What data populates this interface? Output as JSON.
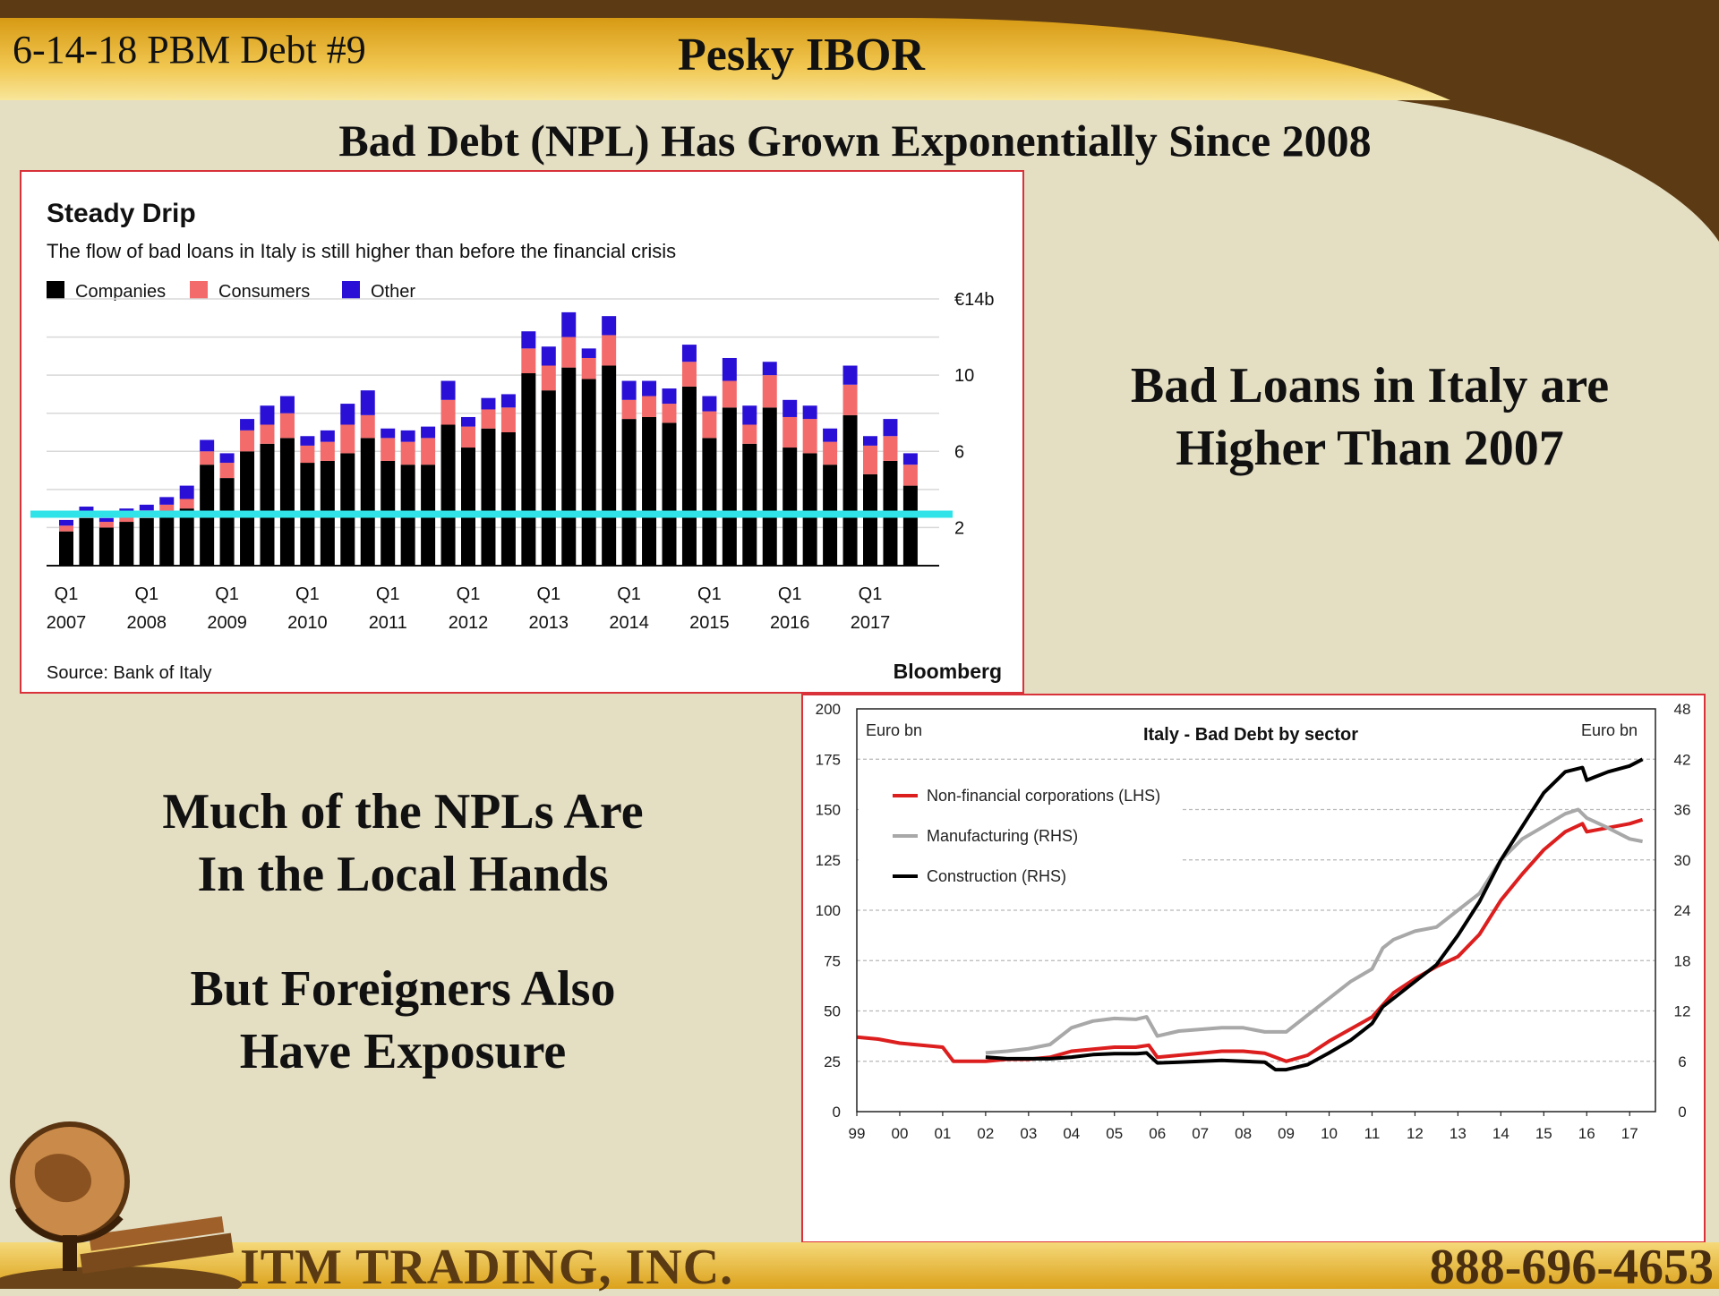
{
  "header": {
    "left_text": "6-14-18 PBM Debt #9",
    "title": "Pesky IBOR"
  },
  "slide_title": "Bad Debt (NPL) Has Grown Exponentially Since 2008",
  "callouts": {
    "right": [
      "Bad Loans in Italy are",
      "Higher Than 2007"
    ],
    "left_1": [
      "Much of the NPLs Are",
      "In the Local Hands"
    ],
    "left_2": [
      "But Foreigners Also",
      "Have Exposure"
    ]
  },
  "footer": {
    "company": "ITM TRADING, INC.",
    "phone": "888-696-4653"
  },
  "colors": {
    "brown": "#5c3a14",
    "gold": "#e2a91c",
    "companies": "#000000",
    "consumers": "#f46b6b",
    "other": "#2a10d6",
    "highlight": "#2fe3e8",
    "nfc": "#dc1e1e",
    "manufacturing": "#a8a8a8",
    "construction": "#000000"
  },
  "chart_data": [
    {
      "type": "bar",
      "stacked": true,
      "title": "Steady Drip",
      "subtitle": "The flow of bad loans in Italy is still higher than before the financial crisis",
      "legend": [
        "Companies",
        "Consumers",
        "Other"
      ],
      "legend_position": "top-left",
      "source": "Source: Bank of Italy",
      "brand": "Bloomberg",
      "y_ticks": [
        2,
        6,
        10
      ],
      "y_top_label": "€14b",
      "ylim": [
        0,
        14
      ],
      "x_tick_labels": [
        [
          "Q1",
          "2007"
        ],
        [
          "Q1",
          "2008"
        ],
        [
          "Q1",
          "2009"
        ],
        [
          "Q1",
          "2010"
        ],
        [
          "Q1",
          "2011"
        ],
        [
          "Q1",
          "2012"
        ],
        [
          "Q1",
          "2013"
        ],
        [
          "Q1",
          "2014"
        ],
        [
          "Q1",
          "2015"
        ],
        [
          "Q1",
          "2016"
        ],
        [
          "Q1",
          "2017"
        ]
      ],
      "reference_line_value": 2.7,
      "series": [
        {
          "name": "Companies",
          "values": [
            1.8,
            2.5,
            2.0,
            2.3,
            2.5,
            2.6,
            3.0,
            5.3,
            4.6,
            6.0,
            6.4,
            6.7,
            5.4,
            5.5,
            5.9,
            6.7,
            5.5,
            5.3,
            5.3,
            7.4,
            6.2,
            7.2,
            7.0,
            10.1,
            9.2,
            10.4,
            9.8,
            10.5,
            7.7,
            7.8,
            7.5,
            9.4,
            6.7,
            8.3,
            6.4,
            8.3,
            6.2,
            5.9,
            5.3,
            7.9,
            4.8,
            5.5,
            4.2
          ]
        },
        {
          "name": "Consumers",
          "values": [
            0.3,
            0.3,
            0.3,
            0.4,
            0.4,
            0.6,
            0.5,
            0.7,
            0.8,
            1.1,
            1.0,
            1.3,
            0.9,
            1.0,
            1.5,
            1.2,
            1.2,
            1.2,
            1.4,
            1.3,
            1.1,
            1.0,
            1.3,
            1.3,
            1.3,
            1.6,
            1.1,
            1.6,
            1.0,
            1.1,
            1.0,
            1.3,
            1.4,
            1.4,
            1.0,
            1.7,
            1.6,
            1.8,
            1.2,
            1.6,
            1.5,
            1.3,
            1.1
          ]
        },
        {
          "name": "Other",
          "values": [
            0.3,
            0.3,
            0.2,
            0.3,
            0.3,
            0.4,
            0.7,
            0.6,
            0.5,
            0.6,
            1.0,
            0.9,
            0.5,
            0.6,
            1.1,
            1.3,
            0.5,
            0.6,
            0.6,
            1.0,
            0.5,
            0.6,
            0.7,
            0.9,
            1.0,
            1.3,
            0.5,
            1.0,
            1.0,
            0.8,
            0.8,
            0.9,
            0.8,
            1.2,
            1.0,
            0.7,
            0.9,
            0.7,
            0.7,
            1.0,
            0.5,
            0.9,
            0.6
          ]
        }
      ]
    },
    {
      "type": "line",
      "title": "Italy - Bad Debt by sector",
      "ylabel_left": "Euro bn",
      "ylabel_right": "Euro bn",
      "ylim_left": [
        0,
        200
      ],
      "ylim_right": [
        0,
        48
      ],
      "y_ticks_left": [
        0,
        25,
        50,
        75,
        100,
        125,
        150,
        175,
        200
      ],
      "y_ticks_right": [
        0,
        6,
        12,
        18,
        24,
        30,
        36,
        42,
        48
      ],
      "x_range": [
        1999,
        2017.6
      ],
      "x_tick_labels": [
        "99",
        "00",
        "01",
        "02",
        "03",
        "04",
        "05",
        "06",
        "07",
        "08",
        "09",
        "10",
        "11",
        "12",
        "13",
        "14",
        "15",
        "16",
        "17"
      ],
      "grid": true,
      "legend_position": "top-left",
      "series": [
        {
          "name": "Non-financial corporations (LHS)",
          "axis": "left",
          "x": [
            1999,
            1999.5,
            2000,
            2000.5,
            2001,
            2001.25,
            2001.5,
            2002,
            2002.5,
            2003,
            2003.5,
            2004,
            2004.5,
            2005,
            2005.5,
            2005.8,
            2006,
            2006.5,
            2007,
            2007.5,
            2008,
            2008.5,
            2009,
            2009.5,
            2010,
            2010.5,
            2011,
            2011.5,
            2012,
            2012.5,
            2013,
            2013.5,
            2014,
            2014.5,
            2015,
            2015.5,
            2015.9,
            2016,
            2016.5,
            2017,
            2017.3
          ],
          "y": [
            37,
            36,
            34,
            33,
            32,
            25,
            25,
            25,
            26,
            26,
            27,
            30,
            31,
            32,
            32,
            33,
            27,
            28,
            29,
            30,
            30,
            29,
            25,
            28,
            35,
            41,
            47,
            59,
            66,
            72,
            77,
            88,
            105,
            118,
            130,
            139,
            143,
            139,
            141,
            143,
            145
          ]
        },
        {
          "name": "Manufacturing (RHS)",
          "axis": "right",
          "x": [
            2002,
            2002.5,
            2003,
            2003.5,
            2004,
            2004.5,
            2005,
            2005.5,
            2005.75,
            2006,
            2006.5,
            2007,
            2007.5,
            2008,
            2008.5,
            2009,
            2009.5,
            2010,
            2010.5,
            2011,
            2011.25,
            2011.5,
            2012,
            2012.5,
            2013,
            2013.5,
            2014,
            2014.5,
            2015,
            2015.5,
            2015.8,
            2016,
            2016.5,
            2017,
            2017.3
          ],
          "y": [
            7,
            7.2,
            7.5,
            8,
            10,
            10.8,
            11.1,
            11,
            11.3,
            9,
            9.6,
            9.8,
            10,
            10,
            9.5,
            9.5,
            11.5,
            13.5,
            15.5,
            17,
            19.5,
            20.5,
            21.5,
            22,
            24,
            26,
            30,
            32.5,
            34,
            35.5,
            36,
            35,
            33.8,
            32.5,
            32.2
          ]
        },
        {
          "name": "Construction (RHS)",
          "axis": "right",
          "x": [
            2002,
            2002.5,
            2003,
            2003.5,
            2004,
            2004.5,
            2005,
            2005.5,
            2005.75,
            2006,
            2006.5,
            2007,
            2007.5,
            2008,
            2008.5,
            2008.75,
            2009,
            2009.5,
            2010,
            2010.5,
            2011,
            2011.25,
            2011.5,
            2012,
            2012.5,
            2013,
            2013.5,
            2014,
            2014.5,
            2015,
            2015.5,
            2015.9,
            2016,
            2016.5,
            2017,
            2017.3
          ],
          "y": [
            6.5,
            6.3,
            6.3,
            6.3,
            6.5,
            6.8,
            6.9,
            6.9,
            7,
            5.8,
            5.9,
            6,
            6.1,
            6,
            5.9,
            5,
            5,
            5.6,
            7,
            8.5,
            10.5,
            12.5,
            13.5,
            15.5,
            17.5,
            21,
            25,
            30,
            34,
            38,
            40.5,
            41,
            39.5,
            40.5,
            41.2,
            42
          ]
        }
      ]
    }
  ]
}
